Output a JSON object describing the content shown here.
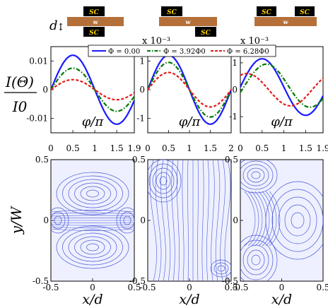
{
  "colors": {
    "series_1": "#1a1aff",
    "series_2": "#007a00",
    "series_3": "#e61a1a",
    "stream_line": "#4a5ad8",
    "stream_bg": "#eef0ff",
    "wire": "#b5703a",
    "sc_box": "#000000",
    "sc_text": "#ffd400"
  },
  "schematic": {
    "d_label": "d",
    "sc_label": "SC",
    "w_label": "w"
  },
  "labels": {
    "y_axis_top": "I(Θ)",
    "y_axis_bottom": "I0",
    "x_axis_phase": "φ/π",
    "y_axis_stream": "y/W",
    "x_axis_stream": "x/d"
  },
  "legend": {
    "entries": [
      "Φ = 0.00",
      "Φ = 3.92Φ0",
      "Φ = 6.28Φ0"
    ]
  },
  "exponents": [
    "x 10⁻³",
    "x 10⁻³"
  ],
  "chart_data": [
    {
      "type": "line",
      "panel": "left",
      "x_ticks": [
        "0",
        "0.5",
        "1",
        "1.5",
        "1.9"
      ],
      "y_ticks": [
        "0.01",
        "0",
        "-0.01"
      ],
      "xlim": [
        0,
        1.9
      ],
      "ylim": [
        -0.015,
        0.015
      ],
      "series": [
        {
          "name": "Φ = 0.00",
          "style": "solid",
          "amp": 0.012,
          "phase": 0.0,
          "offset": 0.0
        },
        {
          "name": "Φ = 3.92Φ0",
          "style": "dashdot",
          "amp": 0.0075,
          "phase": 0.0,
          "offset": 0.0
        },
        {
          "name": "Φ = 6.28Φ0",
          "style": "dashed",
          "amp": 0.0035,
          "phase": 0.0,
          "offset": 0.0
        }
      ]
    },
    {
      "type": "line",
      "panel": "middle",
      "x_ticks": [
        "0",
        "0.5",
        "1",
        "1.5",
        "2"
      ],
      "y_ticks": [
        "1",
        "0",
        "-1"
      ],
      "xlim": [
        0,
        2
      ],
      "ylim": [
        -1.5,
        1.5
      ],
      "series": [
        {
          "name": "Φ = 0.00",
          "style": "solid",
          "amp": 1.2,
          "phase": 0.0,
          "offset": 0.0
        },
        {
          "name": "Φ = 3.92Φ0",
          "style": "dashdot",
          "amp": 0.95,
          "phase": 0.0,
          "offset": 0.0
        },
        {
          "name": "Φ = 6.28Φ0",
          "style": "dashed",
          "amp": 0.6,
          "phase": 0.0,
          "offset": 0.0
        }
      ]
    },
    {
      "type": "line",
      "panel": "right",
      "x_ticks": [
        "0",
        "0.5",
        "1",
        "1.5",
        "1.9"
      ],
      "y_ticks": [
        "1",
        "0",
        "-1"
      ],
      "xlim": [
        0,
        1.9
      ],
      "ylim": [
        -1.6,
        1.6
      ],
      "series": [
        {
          "name": "Φ = 0.00",
          "style": "solid",
          "amp": 1.05,
          "phase": 0.0,
          "offset": 0.1
        },
        {
          "name": "Φ = 3.92Φ0",
          "style": "dashdot",
          "amp": 0.8,
          "phase": 0.1,
          "offset": 0.15
        },
        {
          "name": "Φ = 6.28Φ0",
          "style": "dashed",
          "amp": 0.6,
          "phase": -0.35,
          "offset": 0.0
        }
      ]
    }
  ],
  "stream_panels": {
    "x_ticks": [
      "-0.5",
      "0",
      "0.5"
    ],
    "y_ticks": [
      "0.5",
      "0",
      "-0.5"
    ]
  }
}
